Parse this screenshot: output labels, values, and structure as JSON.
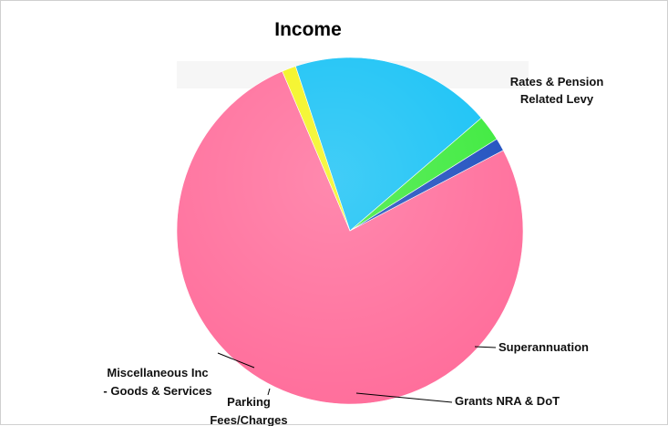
{
  "chart_data": {
    "type": "pie",
    "title": "Income",
    "start_angle_deg": 113,
    "direction": "counterclockwise",
    "slices": [
      {
        "label_lines": [
          "Rates & Pension",
          "Related Levy"
        ],
        "value": 76.3,
        "color": "#ff6f9c"
      },
      {
        "label_lines": [
          "Miscellaneous Inc",
          "- Goods & Services"
        ],
        "value": 1.2,
        "color": "#1f4fbf"
      },
      {
        "label_lines": [
          "Parking",
          "Fees/Charges"
        ],
        "value": 2.4,
        "color": "#3dea3d"
      },
      {
        "label_lines": [
          "Grants NRA & DoT"
        ],
        "value": 18.8,
        "color": "#18c2f5"
      },
      {
        "label_lines": [
          "Superannuation"
        ],
        "value": 1.3,
        "color": "#f4f41e"
      }
    ],
    "legend": "none",
    "grid": false
  }
}
